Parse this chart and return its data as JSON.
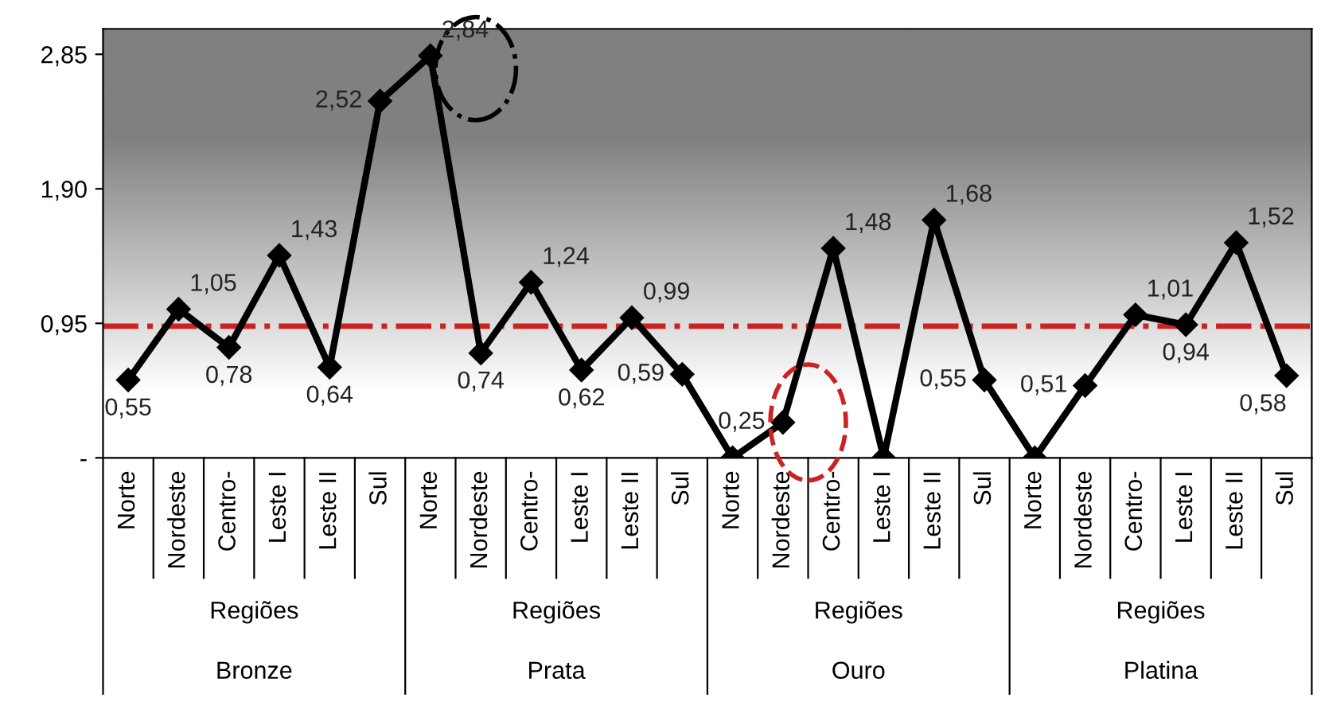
{
  "chart_data": {
    "type": "line",
    "categories": [
      "Norte",
      "Nordeste",
      "Centro-",
      "Leste I",
      "Leste II",
      "Sul",
      "Norte",
      "Nordeste",
      "Centro-",
      "Leste I",
      "Leste II",
      "Sul",
      "Norte",
      "Nordeste",
      "Centro-",
      "Leste I",
      "Leste II",
      "Sul",
      "Norte",
      "Nordeste",
      "Centro-",
      "Leste I",
      "Leste II",
      "Sul"
    ],
    "series": [
      {
        "color": "#000000",
        "values": [
          0.55,
          1.05,
          0.78,
          1.43,
          0.64,
          2.52,
          2.84,
          0.74,
          1.24,
          0.62,
          0.99,
          0.59,
          0,
          0.25,
          1.48,
          0,
          1.68,
          0.55,
          0,
          0.51,
          1.01,
          0.94,
          1.52,
          0.58
        ],
        "value_labels": [
          "0,55",
          "1,05",
          "0,78",
          "1,43",
          "0,64",
          "2,52",
          "2,84",
          "0,74",
          "1,24",
          "0,62",
          "0,99",
          "0,59",
          null,
          "0,25",
          "1,48",
          null,
          "1,68",
          "0,55",
          null,
          "0,51",
          "1,01",
          "0,94",
          "1,52",
          "0,58"
        ]
      }
    ],
    "ylim": [
      0,
      3.03
    ],
    "yticks": [
      {
        "value": 0,
        "label": "-"
      },
      {
        "value": 0.95,
        "label": "0,95"
      },
      {
        "value": 1.9,
        "label": "1,90"
      },
      {
        "value": 2.85,
        "label": "2,85"
      }
    ],
    "ref_lines": [
      {
        "axis": "y",
        "value": 0.93,
        "color": "#cc2222",
        "line_style": "dashdot"
      }
    ],
    "annotations": [
      "Regiões",
      "Regiões",
      "Regiões",
      "Regiões",
      "Bronze",
      "Prata",
      "Ouro",
      "Platina"
    ],
    "marker": "diamond",
    "line_style": "solid",
    "grid": false,
    "legend": false
  }
}
